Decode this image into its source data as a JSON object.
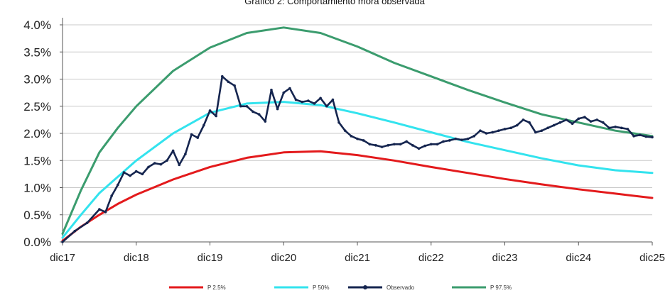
{
  "chart_data": {
    "type": "line",
    "title": "Gráfico 2: Comportamiento mora observada",
    "xlabel": "",
    "ylabel": "",
    "x_ticks": [
      "dic17",
      "dic18",
      "dic19",
      "dic20",
      "dic21",
      "dic22",
      "dic23",
      "dic24",
      "dic25"
    ],
    "y_ticks": [
      "0.0%",
      "0.5%",
      "1.0%",
      "1.5%",
      "2.0%",
      "2.5%",
      "3.0%",
      "3.5%",
      "4.0%"
    ],
    "ylim": [
      0,
      4
    ],
    "xlim": [
      0,
      96
    ],
    "x_unit": "months since dic17",
    "grid": "horizontal",
    "legend_position": "bottom",
    "series": [
      {
        "name": "P 2.5%",
        "color": "#e31a1c",
        "style": "line",
        "x": [
          0,
          3,
          6,
          9,
          12,
          18,
          24,
          30,
          36,
          42,
          48,
          54,
          60,
          66,
          72,
          78,
          84,
          90,
          96
        ],
        "y": [
          0.02,
          0.28,
          0.5,
          0.7,
          0.87,
          1.15,
          1.38,
          1.55,
          1.65,
          1.67,
          1.6,
          1.5,
          1.38,
          1.27,
          1.16,
          1.06,
          0.97,
          0.89,
          0.81
        ]
      },
      {
        "name": "P 50%",
        "color": "#33e3ee",
        "style": "line",
        "x": [
          0,
          3,
          6,
          9,
          12,
          18,
          24,
          30,
          36,
          42,
          48,
          54,
          60,
          66,
          72,
          78,
          84,
          90,
          96
        ],
        "y": [
          0.08,
          0.5,
          0.9,
          1.2,
          1.5,
          2.0,
          2.38,
          2.55,
          2.58,
          2.52,
          2.37,
          2.2,
          2.02,
          1.84,
          1.69,
          1.54,
          1.41,
          1.32,
          1.27
        ]
      },
      {
        "name": "Observado",
        "color": "#15254f",
        "style": "line-markers",
        "x": [
          0,
          2,
          4,
          6,
          7,
          8,
          9,
          10,
          11,
          12,
          13,
          14,
          15,
          16,
          17,
          18,
          19,
          20,
          21,
          22,
          23,
          24,
          25,
          26,
          27,
          28,
          29,
          30,
          31,
          32,
          33,
          34,
          35,
          36,
          37,
          38,
          39,
          40,
          41,
          42,
          43,
          44,
          45,
          46,
          47,
          48,
          49,
          50,
          51,
          52,
          53,
          54,
          55,
          56,
          57,
          58,
          59,
          60,
          61,
          62,
          63,
          64,
          65,
          66,
          67,
          68,
          69,
          70,
          71,
          72,
          73,
          74,
          75,
          76,
          77,
          78,
          79,
          80,
          81,
          82,
          83,
          84,
          85,
          86,
          87,
          88,
          89,
          90,
          91,
          92,
          93,
          94,
          95,
          96
        ],
        "y": [
          0.0,
          0.2,
          0.35,
          0.6,
          0.55,
          0.85,
          1.05,
          1.28,
          1.22,
          1.3,
          1.25,
          1.38,
          1.45,
          1.43,
          1.5,
          1.68,
          1.42,
          1.62,
          1.98,
          1.92,
          2.15,
          2.42,
          2.32,
          3.05,
          2.95,
          2.88,
          2.5,
          2.5,
          2.4,
          2.35,
          2.22,
          2.8,
          2.45,
          2.75,
          2.83,
          2.62,
          2.58,
          2.6,
          2.55,
          2.65,
          2.5,
          2.62,
          2.2,
          2.05,
          1.95,
          1.9,
          1.87,
          1.8,
          1.78,
          1.75,
          1.78,
          1.8,
          1.8,
          1.85,
          1.78,
          1.72,
          1.77,
          1.8,
          1.8,
          1.85,
          1.87,
          1.9,
          1.88,
          1.9,
          1.95,
          2.05,
          2.0,
          2.02,
          2.05,
          2.08,
          2.1,
          2.15,
          2.25,
          2.2,
          2.02,
          2.05,
          2.1,
          2.15,
          2.2,
          2.25,
          2.18,
          2.27,
          2.3,
          2.22,
          2.25,
          2.2,
          2.1,
          2.12,
          2.1,
          2.08,
          1.95,
          1.97,
          1.94,
          1.93
        ]
      },
      {
        "name": "P 97.5%",
        "color": "#3b9c6e",
        "style": "line",
        "x": [
          0,
          3,
          6,
          9,
          12,
          18,
          24,
          30,
          36,
          42,
          48,
          54,
          60,
          66,
          72,
          78,
          84,
          90,
          96
        ],
        "y": [
          0.15,
          0.95,
          1.65,
          2.1,
          2.5,
          3.15,
          3.58,
          3.85,
          3.95,
          3.85,
          3.6,
          3.3,
          3.05,
          2.8,
          2.57,
          2.35,
          2.2,
          2.05,
          1.95
        ]
      }
    ]
  }
}
